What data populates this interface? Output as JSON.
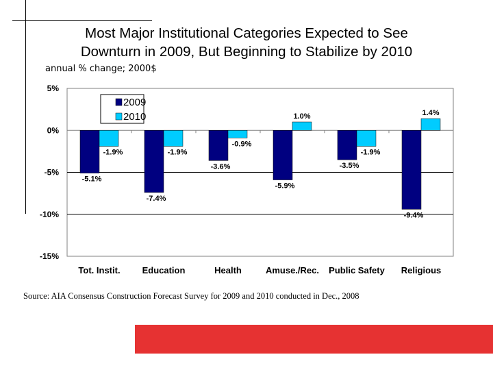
{
  "slide": {
    "title_line1": "Most Major Institutional Categories Expected to See",
    "title_line2": "Downturn in 2009, But Beginning to Stabilize by 2010",
    "subtitle": "annual % change; 2000$",
    "source": "Source:  AIA Consensus Construction Forecast Survey for 2009 and 2010 conducted in Dec., 2008",
    "accent_color": "#e63232"
  },
  "chart_data": {
    "type": "bar",
    "title": "",
    "xlabel": "",
    "ylabel": "",
    "ylim": [
      -15,
      5
    ],
    "yticks": [
      5,
      0,
      -5,
      -10,
      -15
    ],
    "ytick_labels": [
      "5%",
      "0%",
      "-5%",
      "-10%",
      "-15%"
    ],
    "grid": true,
    "legend": "top-left",
    "categories": [
      "Tot. Instit.",
      "Education",
      "Health",
      "Amuse./Rec.",
      "Public Safety",
      "Religious"
    ],
    "series": [
      {
        "name": "2009",
        "color": "#000080",
        "values": [
          -5.1,
          -7.4,
          -3.6,
          -5.9,
          -3.5,
          -9.4
        ],
        "labels": [
          "-5.1%",
          "-7.4%",
          "-3.6%",
          "-5.9%",
          "-3.5%",
          "-9.4%"
        ]
      },
      {
        "name": "2010",
        "color": "#00ccff",
        "values": [
          -1.9,
          -1.9,
          -0.9,
          1.0,
          -1.9,
          1.4
        ],
        "labels": [
          "-1.9%",
          "-1.9%",
          "-0.9%",
          "1.0%",
          "-1.9%",
          "1.4%"
        ]
      }
    ]
  }
}
